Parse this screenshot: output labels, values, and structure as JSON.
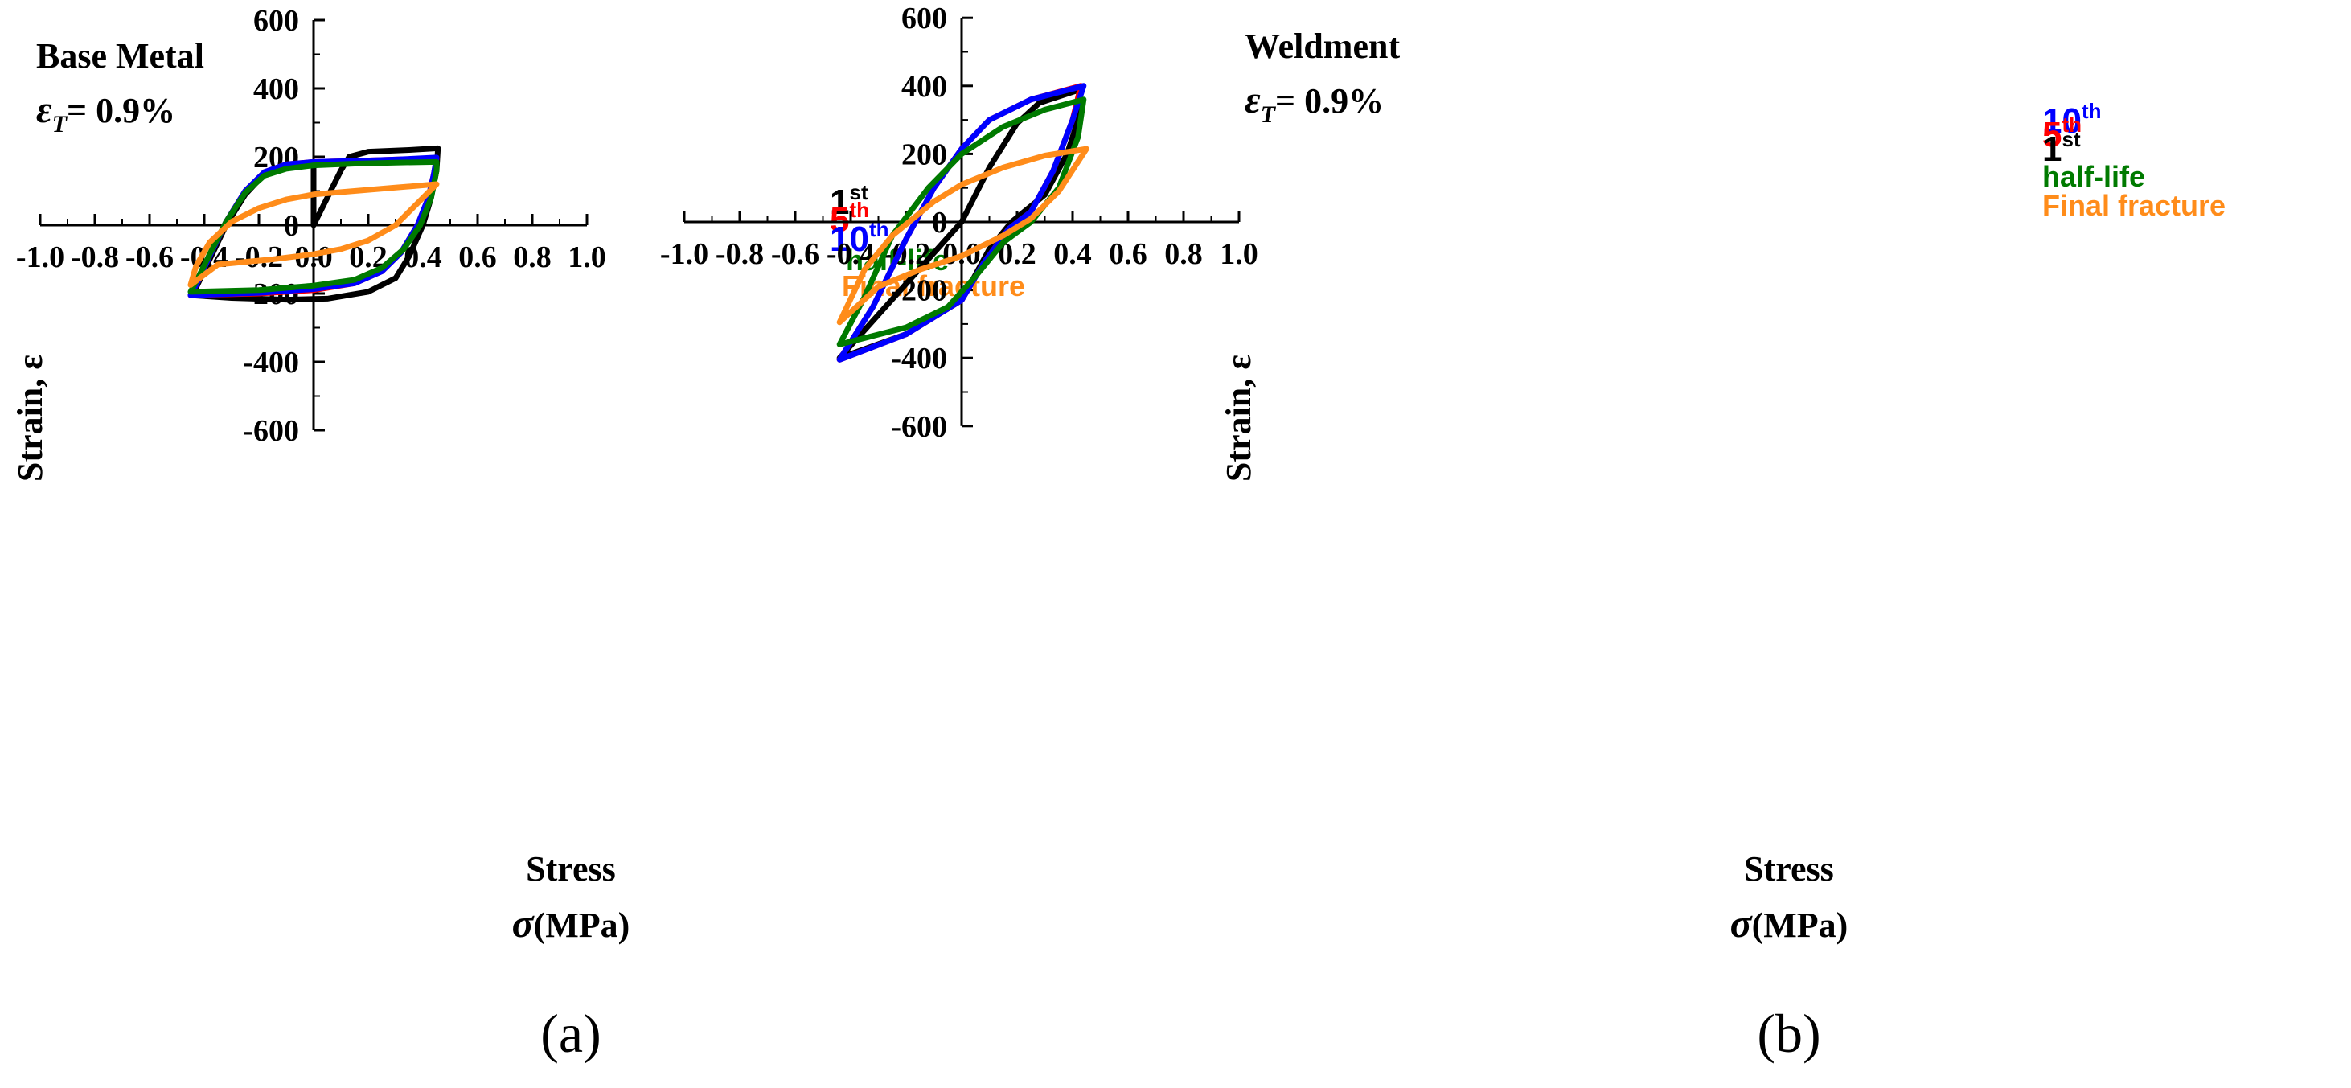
{
  "chart_data": [
    {
      "type": "line",
      "panel": "(a)",
      "annotation": {
        "title": "Base Metal",
        "strain_symbol": "ε",
        "strain_subscript": "T",
        "strain_value": "= 0.9%"
      },
      "xlabel": {
        "line1": "Stress",
        "symbol": "σ",
        "unit": "(MPa)"
      },
      "ylabel": "Strain, ε",
      "xlim": [
        -1.0,
        1.0
      ],
      "ylim": [
        -600,
        600
      ],
      "x_ticks": [
        -1.0,
        -0.8,
        -0.6,
        -0.4,
        -0.2,
        0.0,
        0.2,
        0.4,
        0.6,
        0.8,
        1.0
      ],
      "x_tick_labels": [
        "-1.0",
        "-0.8",
        "-0.6",
        "-0.4",
        "-0.2",
        "0.0",
        "0.2",
        "0.4",
        "0.6",
        "0.8",
        "1.0"
      ],
      "y_ticks": [
        -600,
        -400,
        -200,
        0,
        200,
        400,
        600
      ],
      "y_tick_labels": [
        "-600",
        "-400",
        "-200",
        "0",
        "200",
        "400",
        "600"
      ],
      "legend": [
        {
          "base": "1",
          "sup": "st",
          "name": "1st"
        },
        {
          "base": "5",
          "sup": "th",
          "name": "5th"
        },
        {
          "base": "10",
          "sup": "th",
          "name": "10th"
        },
        {
          "base": "half-life",
          "sup": "",
          "name": "half-life"
        },
        {
          "base": "Final fracture",
          "sup": "",
          "name": "Final fracture"
        }
      ],
      "series": [
        {
          "name": "1st",
          "color": "#000000",
          "points": [
            [
              0,
              0
            ],
            [
              0.05,
              80
            ],
            [
              0.1,
              160
            ],
            [
              0.13,
              200
            ],
            [
              0.2,
              215
            ],
            [
              0.35,
              220
            ],
            [
              0.455,
              225
            ],
            [
              0.45,
              160
            ],
            [
              0.43,
              80
            ],
            [
              0.4,
              0
            ],
            [
              0.35,
              -90
            ],
            [
              0.3,
              -155
            ],
            [
              0.2,
              -195
            ],
            [
              0.05,
              -215
            ],
            [
              -0.1,
              -218
            ],
            [
              -0.3,
              -213
            ],
            [
              -0.45,
              -205
            ],
            [
              -0.44,
              -200
            ],
            [
              -0.38,
              -100
            ],
            [
              -0.32,
              0
            ],
            [
              -0.25,
              90
            ],
            [
              -0.18,
              150
            ],
            [
              -0.1,
              175
            ],
            [
              0,
              185
            ]
          ]
        },
        {
          "name": "5th",
          "color": "#ff0000",
          "points": [
            [
              -0.45,
              -205
            ],
            [
              -0.42,
              -160
            ],
            [
              -0.38,
              -90
            ],
            [
              -0.32,
              10
            ],
            [
              -0.25,
              100
            ],
            [
              -0.18,
              155
            ],
            [
              -0.1,
              178
            ],
            [
              0,
              185
            ],
            [
              0.15,
              188
            ],
            [
              0.3,
              192
            ],
            [
              0.45,
              195
            ],
            [
              0.44,
              150
            ],
            [
              0.42,
              80
            ],
            [
              0.38,
              0
            ],
            [
              0.32,
              -80
            ],
            [
              0.25,
              -135
            ],
            [
              0.15,
              -170
            ],
            [
              0,
              -190
            ],
            [
              -0.2,
              -200
            ],
            [
              -0.45,
              -205
            ]
          ]
        },
        {
          "name": "10th",
          "color": "#0000ff",
          "points": [
            [
              -0.45,
              -205
            ],
            [
              -0.42,
              -160
            ],
            [
              -0.38,
              -90
            ],
            [
              -0.32,
              10
            ],
            [
              -0.25,
              100
            ],
            [
              -0.18,
              155
            ],
            [
              -0.1,
              178
            ],
            [
              0,
              185
            ],
            [
              0.15,
              188
            ],
            [
              0.3,
              192
            ],
            [
              0.45,
              198
            ],
            [
              0.44,
              150
            ],
            [
              0.42,
              80
            ],
            [
              0.38,
              0
            ],
            [
              0.32,
              -80
            ],
            [
              0.25,
              -135
            ],
            [
              0.15,
              -170
            ],
            [
              0,
              -187
            ],
            [
              -0.2,
              -198
            ],
            [
              -0.45,
              -205
            ]
          ]
        },
        {
          "name": "half-life",
          "color": "#007a00",
          "points": [
            [
              -0.45,
              -195
            ],
            [
              -0.42,
              -150
            ],
            [
              -0.38,
              -85
            ],
            [
              -0.32,
              10
            ],
            [
              -0.25,
              95
            ],
            [
              -0.18,
              145
            ],
            [
              -0.1,
              165
            ],
            [
              0,
              175
            ],
            [
              0.15,
              180
            ],
            [
              0.3,
              183
            ],
            [
              0.45,
              185
            ],
            [
              0.45,
              160
            ],
            [
              0.43,
              80
            ],
            [
              0.39,
              0
            ],
            [
              0.33,
              -70
            ],
            [
              0.25,
              -125
            ],
            [
              0.15,
              -160
            ],
            [
              0,
              -177
            ],
            [
              -0.2,
              -190
            ],
            [
              -0.45,
              -195
            ]
          ]
        },
        {
          "name": "Final fracture",
          "color": "#ff8c1a",
          "points": [
            [
              -0.45,
              -175
            ],
            [
              -0.43,
              -120
            ],
            [
              -0.38,
              -50
            ],
            [
              -0.3,
              10
            ],
            [
              -0.2,
              50
            ],
            [
              -0.1,
              75
            ],
            [
              0,
              90
            ],
            [
              0.15,
              100
            ],
            [
              0.3,
              110
            ],
            [
              0.45,
              120
            ],
            [
              0.4,
              80
            ],
            [
              0.35,
              40
            ],
            [
              0.3,
              0
            ],
            [
              0.2,
              -45
            ],
            [
              0.1,
              -70
            ],
            [
              0,
              -85
            ],
            [
              -0.15,
              -100
            ],
            [
              -0.35,
              -115
            ],
            [
              -0.45,
              -175
            ]
          ]
        }
      ]
    },
    {
      "type": "line",
      "panel": "(b)",
      "annotation": {
        "title": "Weldment",
        "strain_symbol": "ε",
        "strain_subscript": "T",
        "strain_value": "= 0.9%"
      },
      "xlabel": {
        "line1": "Stress",
        "symbol": "σ",
        "unit": "(MPa)"
      },
      "ylabel": "Strain, ε",
      "xlim": [
        -1.0,
        1.0
      ],
      "ylim": [
        -600,
        600
      ],
      "x_ticks": [
        -1.0,
        -0.8,
        -0.6,
        -0.4,
        -0.2,
        0.0,
        0.2,
        0.4,
        0.6,
        0.8,
        1.0
      ],
      "x_tick_labels": [
        "-1.0",
        "-0.8",
        "-0.6",
        "-0.4",
        "-0.2",
        "0.0",
        "0.2",
        "0.4",
        "0.6",
        "0.8",
        "1.0"
      ],
      "y_ticks": [
        -600,
        -400,
        -200,
        0,
        200,
        400,
        600
      ],
      "y_tick_labels": [
        "-600",
        "-400",
        "-200",
        "0",
        "200",
        "400",
        "600"
      ],
      "legend": [
        {
          "base": "10",
          "sup": "th",
          "name": "10th"
        },
        {
          "base": "5",
          "sup": "th",
          "name": "5th"
        },
        {
          "base": "1",
          "sup": "st",
          "name": "1st"
        },
        {
          "base": "half-life",
          "sup": "",
          "name": "half-life"
        },
        {
          "base": "Final fracture",
          "sup": "",
          "name": "Final fracture"
        }
      ],
      "series": [
        {
          "name": "1st",
          "color": "#000000",
          "points": [
            [
              0,
              0
            ],
            [
              0.1,
              160
            ],
            [
              0.2,
              290
            ],
            [
              0.28,
              350
            ],
            [
              0.43,
              390
            ],
            [
              0.42,
              300
            ],
            [
              0.38,
              200
            ],
            [
              0.3,
              80
            ],
            [
              0.18,
              0
            ],
            [
              0.1,
              -80
            ],
            [
              0,
              -230
            ],
            [
              -0.2,
              -330
            ],
            [
              -0.44,
              -400
            ]
          ]
        },
        {
          "name": "5th",
          "color": "#ff0000",
          "points": [
            [
              -0.44,
              -405
            ],
            [
              -0.32,
              -250
            ],
            [
              -0.2,
              -50
            ],
            [
              -0.1,
              100
            ],
            [
              0,
              215
            ],
            [
              0.1,
              300
            ],
            [
              0.25,
              360
            ],
            [
              0.43,
              400
            ],
            [
              0.4,
              300
            ],
            [
              0.33,
              150
            ],
            [
              0.25,
              30
            ],
            [
              0.17,
              -20
            ],
            [
              0.08,
              -120
            ],
            [
              0,
              -230
            ],
            [
              -0.2,
              -330
            ],
            [
              -0.44,
              -405
            ]
          ]
        },
        {
          "name": "10th",
          "color": "#0000ff",
          "points": [
            [
              -0.44,
              -405
            ],
            [
              -0.32,
              -250
            ],
            [
              -0.2,
              -50
            ],
            [
              -0.1,
              100
            ],
            [
              0,
              215
            ],
            [
              0.1,
              300
            ],
            [
              0.25,
              360
            ],
            [
              0.44,
              400
            ],
            [
              0.4,
              300
            ],
            [
              0.33,
              150
            ],
            [
              0.25,
              30
            ],
            [
              0.17,
              -20
            ],
            [
              0.08,
              -120
            ],
            [
              0,
              -230
            ],
            [
              -0.2,
              -330
            ],
            [
              -0.44,
              -405
            ]
          ]
        },
        {
          "name": "half-life",
          "color": "#007a00",
          "points": [
            [
              -0.44,
              -360
            ],
            [
              -0.35,
              -220
            ],
            [
              -0.25,
              -40
            ],
            [
              -0.12,
              100
            ],
            [
              0,
              200
            ],
            [
              0.15,
              280
            ],
            [
              0.3,
              330
            ],
            [
              0.44,
              360
            ],
            [
              0.42,
              250
            ],
            [
              0.35,
              100
            ],
            [
              0.25,
              0
            ],
            [
              0.15,
              -60
            ],
            [
              0.05,
              -160
            ],
            [
              -0.05,
              -250
            ],
            [
              -0.2,
              -310
            ],
            [
              -0.44,
              -360
            ]
          ]
        },
        {
          "name": "Final fracture",
          "color": "#ff8c1a",
          "points": [
            [
              -0.44,
              -295
            ],
            [
              -0.35,
              -140
            ],
            [
              -0.25,
              -40
            ],
            [
              -0.1,
              60
            ],
            [
              0,
              110
            ],
            [
              0.15,
              160
            ],
            [
              0.3,
              195
            ],
            [
              0.45,
              215
            ],
            [
              0.35,
              90
            ],
            [
              0.25,
              10
            ],
            [
              0.15,
              -40
            ],
            [
              0,
              -100
            ],
            [
              -0.15,
              -140
            ],
            [
              -0.3,
              -190
            ],
            [
              -0.44,
              -295
            ]
          ]
        }
      ]
    }
  ]
}
